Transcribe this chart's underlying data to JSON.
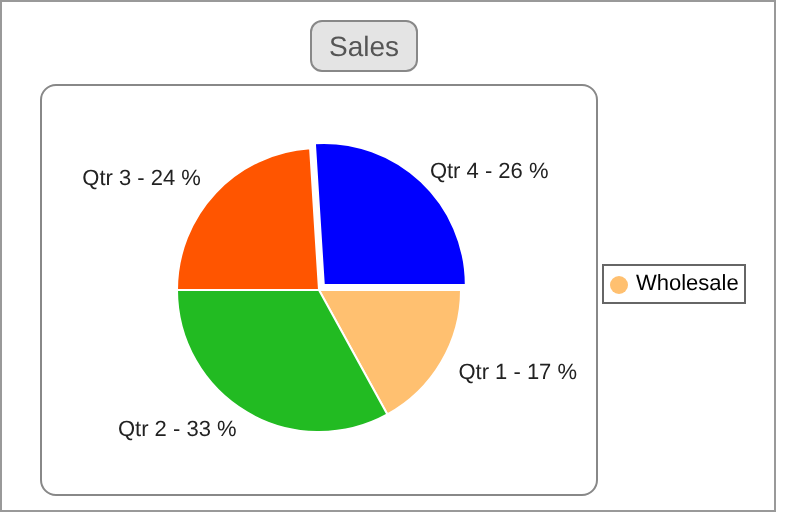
{
  "chart_data": {
    "type": "pie",
    "title": "Sales",
    "categories": [
      "Qtr 1",
      "Qtr 2",
      "Qtr 3",
      "Qtr 4"
    ],
    "series": [
      {
        "name": "Wholesale",
        "color": "#ffc070",
        "values": [
          17,
          33,
          24,
          26
        ]
      }
    ],
    "colors": [
      "#ffc070",
      "#22bb22",
      "#ff5500",
      "#0000ff"
    ],
    "value_labels": [
      "- 17 %",
      "- 33 %",
      "- 24 %",
      "- 26 %"
    ],
    "legend": "right"
  }
}
